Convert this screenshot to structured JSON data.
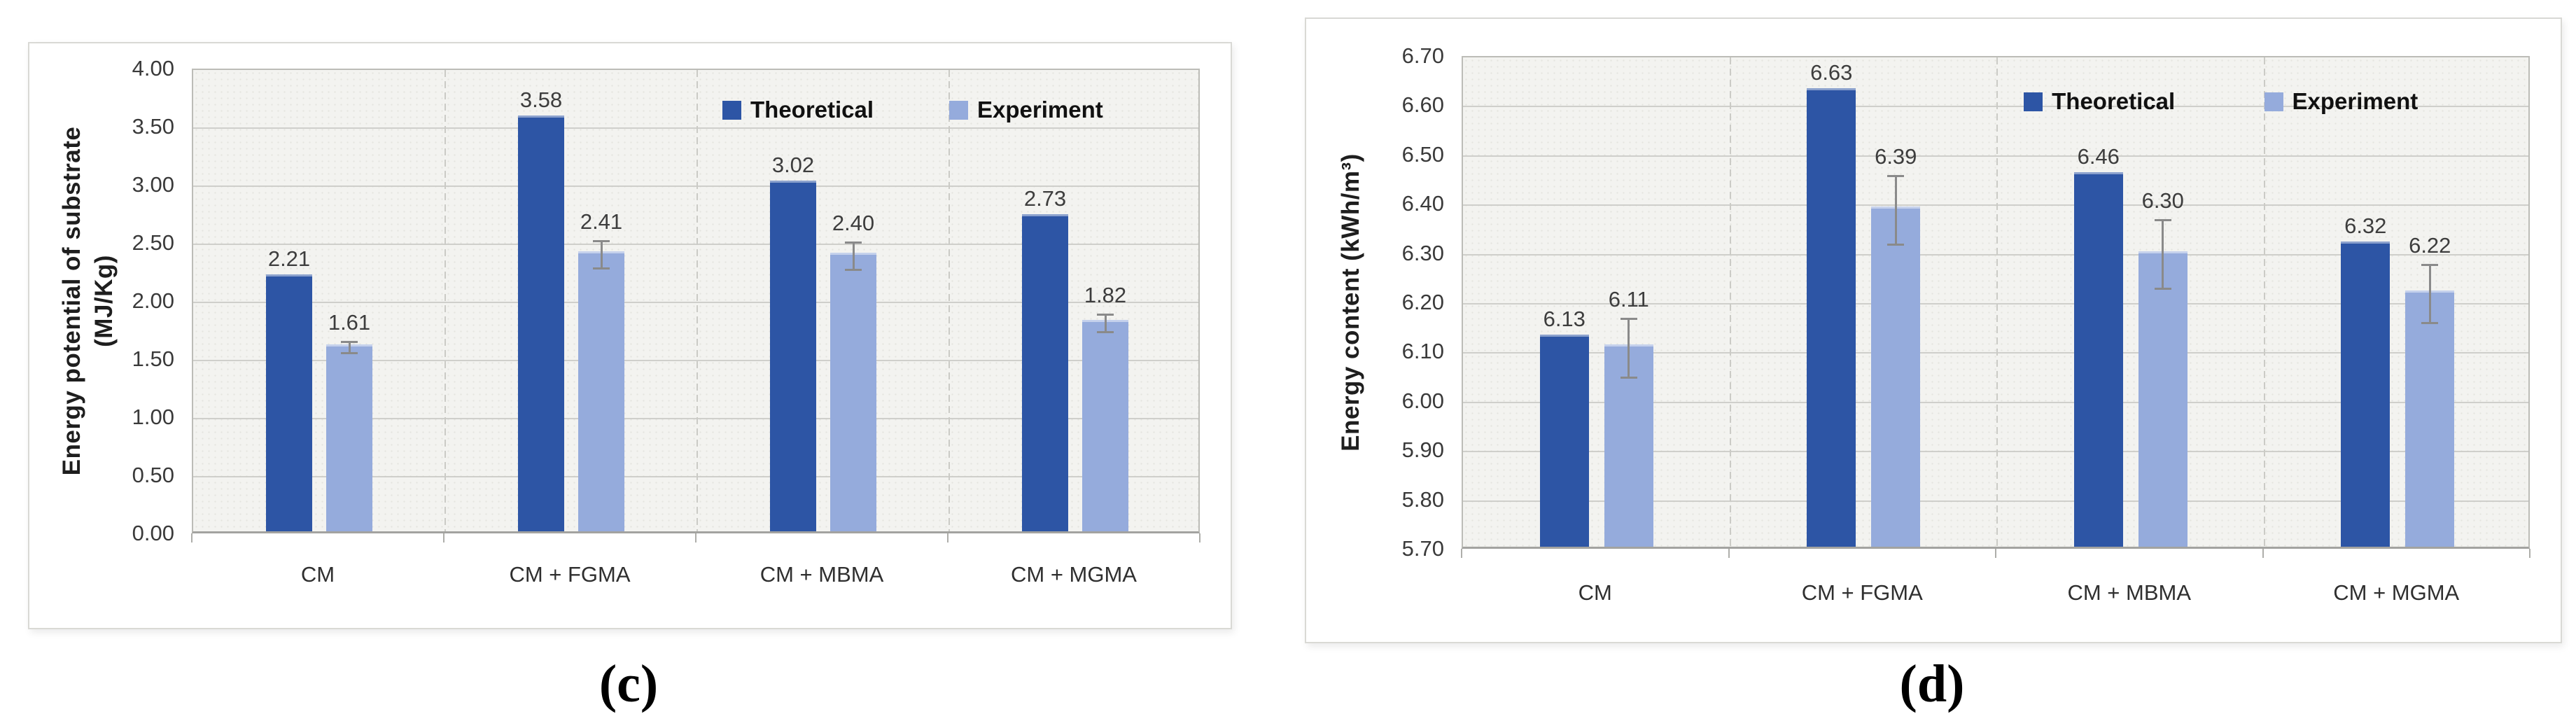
{
  "figures": [
    {
      "caption": "(c)"
    },
    {
      "caption": "(d)"
    }
  ],
  "palette": {
    "theoretical": "#2D55A5",
    "experiment": "#95ABDC",
    "error": "#8a8a8a",
    "grid": "#cbcbc6",
    "plot_bg": "#f3f3f0",
    "plot_dot": "#e5e5e0",
    "plot_border": "#bcbcb7",
    "axis_line": "#a3a3a0",
    "card_border": "#d9d9d5",
    "tick_text": "#3a3a3a",
    "label_text": "#3d3d3d",
    "category_text": "#2f2f2f",
    "title_text": "#1e1e1e",
    "legend_text": "#111111"
  },
  "chart_data": [
    {
      "type": "bar",
      "panel": "c",
      "title": "",
      "categories": [
        "CM",
        "CM + FGMA",
        "CM + MBMA",
        "CM + MGMA"
      ],
      "series": [
        {
          "name": "Theoretical",
          "color_key": "theoretical",
          "values": [
            2.21,
            3.58,
            3.02,
            2.73
          ],
          "labels": [
            "2.21",
            "3.58",
            "3.02",
            "2.73"
          ]
        },
        {
          "name": "Experiment",
          "color_key": "experiment",
          "values": [
            1.61,
            2.41,
            2.4,
            1.82
          ],
          "labels": [
            "1.61",
            "2.41",
            "2.40",
            "1.82"
          ],
          "errors": [
            0.05,
            0.12,
            0.12,
            0.08
          ]
        }
      ],
      "ylabel_lines": [
        "Energy potential of substrate",
        "(MJ/Kg)"
      ],
      "yticks": [
        "4.00",
        "3.50",
        "3.00",
        "2.50",
        "2.00",
        "1.50",
        "1.00",
        "0.50",
        "0.00"
      ],
      "ylim": [
        0,
        4.0
      ],
      "ytick_step": 0.5,
      "grid": true,
      "legend_position": "inside-top-right"
    },
    {
      "type": "bar",
      "panel": "d",
      "title": "",
      "categories": [
        "CM",
        "CM + FGMA",
        "CM + MBMA",
        "CM + MGMA"
      ],
      "series": [
        {
          "name": "Theoretical",
          "color_key": "theoretical",
          "values": [
            6.13,
            6.63,
            6.46,
            6.32
          ],
          "labels": [
            "6.13",
            "6.63",
            "6.46",
            "6.32"
          ]
        },
        {
          "name": "Experiment",
          "color_key": "experiment",
          "values": [
            6.11,
            6.39,
            6.3,
            6.22
          ],
          "labels": [
            "6.11",
            "6.39",
            "6.30",
            "6.22"
          ],
          "errors": [
            0.06,
            0.07,
            0.07,
            0.06
          ]
        }
      ],
      "ylabel_lines": [
        "Energy content (kWh/m³)"
      ],
      "yticks": [
        "6.70",
        "6.60",
        "6.50",
        "6.40",
        "6.30",
        "6.20",
        "6.10",
        "6.00",
        "5.90",
        "5.80",
        "5.70"
      ],
      "ylim": [
        5.7,
        6.7
      ],
      "ytick_step": 0.1,
      "grid": true,
      "legend_position": "inside-top-right"
    }
  ]
}
